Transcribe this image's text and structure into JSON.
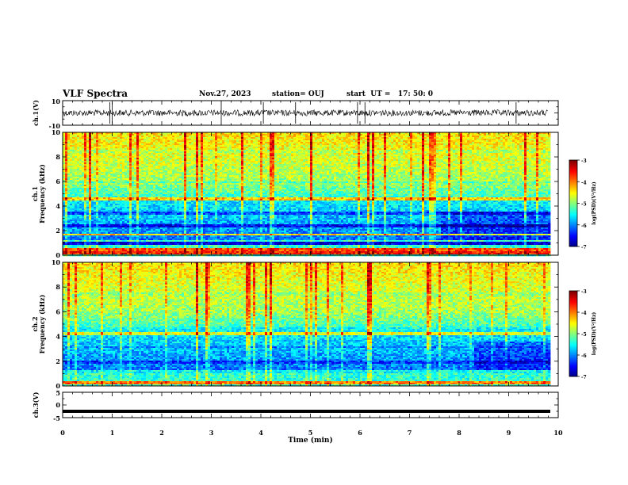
{
  "header": {
    "title": "VLF Spectra",
    "date": "Nov.27, 2023",
    "station": "station= OUJ",
    "start": "start  UT =   17: 50: 0"
  },
  "chart_data": [
    {
      "type": "line",
      "panel": "ch1-waveform",
      "ylabel": "ch.1(V)",
      "ylim": [
        -10,
        10
      ],
      "y_tick_labels": [
        "10",
        "-10"
      ],
      "xlim": [
        0,
        10
      ],
      "description_values": {
        "mean": 0.0,
        "amplitude_approx": 2.5
      },
      "spikes_min": [
        0.95,
        1.0,
        3.2,
        4.05,
        4.7,
        5.95,
        6.1,
        9.15
      ]
    },
    {
      "type": "heatmap",
      "panel": "ch1-spectrogram",
      "ylabel": "ch.1\nFrequency (kHz)",
      "ylabel_lines": [
        "ch.1",
        "Frequency (kHz)"
      ],
      "xlim": [
        0,
        10
      ],
      "ylim": [
        0,
        10
      ],
      "y_tick_labels": [
        "0",
        "2",
        "4",
        "6",
        "8",
        "10"
      ],
      "data_extent_min": 9.8,
      "colorbar": {
        "label": "log(PSD)(V²/Hz)",
        "range": [
          -7,
          -3
        ],
        "tick_labels": [
          "-3",
          "-4",
          "-5",
          "-6",
          "-7"
        ],
        "colormap": "jet"
      },
      "bands_khz": [
        {
          "f": 0.3,
          "level": -3.6
        },
        {
          "f": 0.55,
          "level": -3.8
        },
        {
          "f": 1.0,
          "level": -6.6
        },
        {
          "f": 1.75,
          "level": -4.3
        },
        {
          "f": 2.5,
          "level": -6.5
        },
        {
          "f": 3.5,
          "level": -6.2
        },
        {
          "f": 4.65,
          "level": -4.3
        },
        {
          "f": 6.0,
          "level": -5.2
        },
        {
          "f": 8.5,
          "level": -4.8
        }
      ]
    },
    {
      "type": "heatmap",
      "panel": "ch2-spectrogram",
      "ylabel": "ch.2\nFrequency (kHz)",
      "ylabel_lines": [
        "ch.2",
        "Frequency (kHz)"
      ],
      "xlim": [
        0,
        10
      ],
      "ylim": [
        0,
        10
      ],
      "y_tick_labels": [
        "0",
        "2",
        "4",
        "6",
        "8",
        "10"
      ],
      "data_extent_min": 9.8,
      "colorbar": {
        "label": "log(PSD)(V²/Hz)",
        "range": [
          -7,
          -3
        ],
        "tick_labels": [
          "-3",
          "-4",
          "-5",
          "-6",
          "-7"
        ],
        "colormap": "jet"
      },
      "bands_khz": [
        {
          "f": 0.3,
          "level": -4.0
        },
        {
          "f": 1.2,
          "level": -5.5
        },
        {
          "f": 2.0,
          "level": -6.3
        },
        {
          "f": 3.2,
          "level": -6.0
        },
        {
          "f": 4.3,
          "level": -4.6
        },
        {
          "f": 7.5,
          "level": -4.9
        }
      ]
    },
    {
      "type": "line",
      "panel": "ch3-waveform",
      "ylabel": "ch.3(V)",
      "ylim": [
        -5,
        5
      ],
      "y_tick_labels": [
        "5",
        "0",
        "-5"
      ],
      "xlim": [
        0,
        10
      ],
      "xlabel": "Time  (min)",
      "x_tick_labels": [
        "0",
        "1",
        "2",
        "3",
        "4",
        "5",
        "6",
        "7",
        "8",
        "9",
        "10"
      ],
      "values": {
        "level": -2.5
      }
    }
  ]
}
